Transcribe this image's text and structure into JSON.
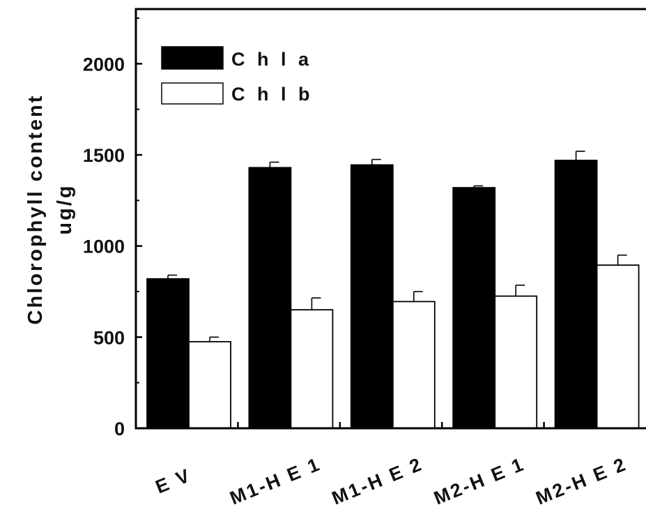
{
  "chart_data": {
    "type": "bar",
    "title": "",
    "xlabel": "",
    "ylabel": "Chlorophyll content",
    "ylabel_unit": "ug/g",
    "categories": [
      "EV",
      "M1-HE1",
      "M1-HE2",
      "M2-HE1",
      "M2-HE2"
    ],
    "category_labels": [
      "E V",
      "M1-H E 1",
      "M1-H E 2",
      "M2-H E 1",
      "M2-H E 2"
    ],
    "series": [
      {
        "name": "Chl a",
        "legend_label": "C h l  a",
        "color": "#000000",
        "values": [
          820,
          1430,
          1445,
          1320,
          1470
        ],
        "errors": [
          20,
          30,
          30,
          10,
          50
        ]
      },
      {
        "name": "Chl b",
        "legend_label": "C h l  b",
        "color": "#ffffff",
        "values": [
          475,
          650,
          695,
          725,
          895
        ],
        "errors": [
          25,
          65,
          55,
          60,
          55
        ]
      }
    ],
    "ylim": [
      0,
      2300
    ],
    "yticks": [
      0,
      500,
      1000,
      1500,
      2000
    ],
    "ytick_labels": [
      "0",
      "500",
      "1000",
      "1500",
      "2000"
    ],
    "minor_yticks": [
      250,
      750,
      1250,
      1750,
      2250
    ],
    "grid": false,
    "legend_position": "top-left",
    "error_bars": "upper"
  }
}
